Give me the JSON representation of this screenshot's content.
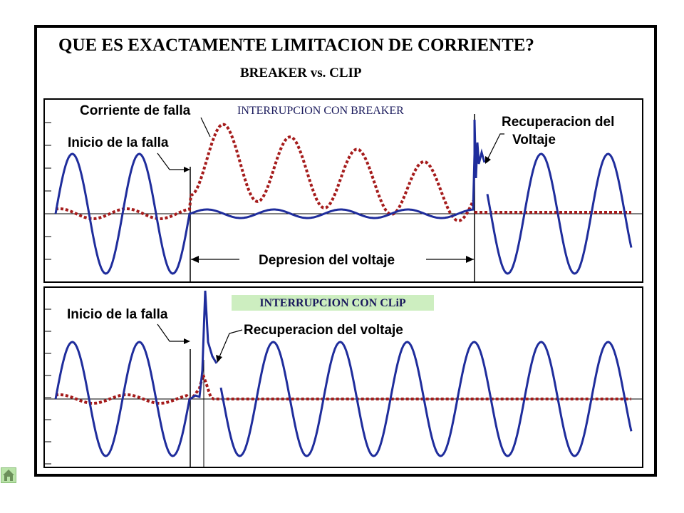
{
  "title": "QUE ES EXACTAMENTE LIMITACION DE CORRIENTE?",
  "subtitle": "BREAKER vs. CLIP",
  "colors": {
    "voltage": "#1f2d9c",
    "current": "#a51b1b",
    "clip_badge": "#cdeec0",
    "breaker_title": "#1a1a5c"
  },
  "panel_breaker": {
    "title": "INTERRUPCION CON BREAKER",
    "label_fault_current": "Corriente de falla",
    "label_fault_start": "Inicio de la falla",
    "label_recovery_line1": "Recuperacion del",
    "label_recovery_line2": "Voltaje",
    "label_voltage_dip": "Depresion del voltaje"
  },
  "panel_clip": {
    "title": "INTERRUPCION CON CLiP",
    "label_fault_start": "Inicio de la falla",
    "label_recovery": "Recuperacion del voltaje"
  },
  "home_icon": "home-icon"
}
